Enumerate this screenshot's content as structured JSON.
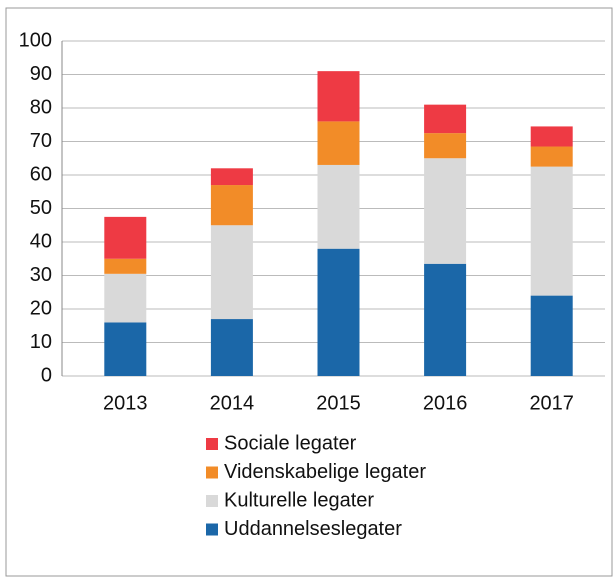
{
  "chart_data": {
    "type": "stacked_bar",
    "categories": [
      "2013",
      "2014",
      "2015",
      "2016",
      "2017"
    ],
    "series": [
      {
        "name": "Uddannelseslegater",
        "color": "#1b67a8",
        "values": [
          16,
          17,
          38,
          33.5,
          24
        ]
      },
      {
        "name": "Kulturelle legater",
        "color": "#d9d9d9",
        "values": [
          14.5,
          28,
          25,
          31.5,
          38.5
        ]
      },
      {
        "name": "Videnskabelige legater",
        "color": "#f28c28",
        "values": [
          4.5,
          12,
          13,
          7.5,
          6
        ]
      },
      {
        "name": "Sociale legater",
        "color": "#ee3a44",
        "values": [
          12.5,
          5,
          15,
          8.5,
          6
        ]
      }
    ],
    "ylim": [
      0,
      100
    ],
    "yticks": [
      0,
      10,
      20,
      30,
      40,
      50,
      60,
      70,
      80,
      90,
      100
    ],
    "grid": true
  }
}
